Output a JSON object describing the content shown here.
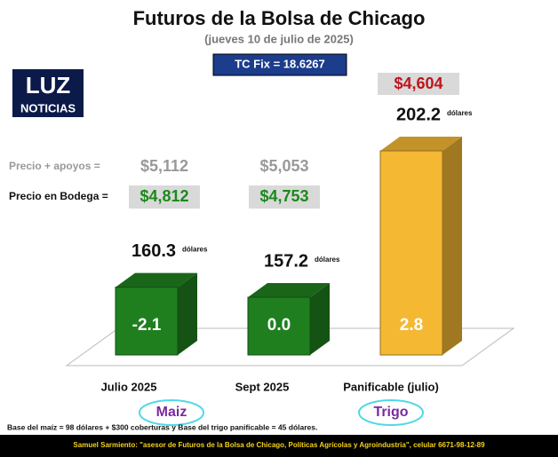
{
  "chart_data": {
    "type": "bar3d",
    "title": "Futuros de la Bolsa de Chicago",
    "subtitle": "(jueves 10 de julio de 2025)",
    "exchange_rate": "TC Fix = 18.6267",
    "logo": {
      "top": "LUZ",
      "bottom": "NOTICIAS"
    },
    "categories": [
      "Julio 2025",
      "Sept 2025",
      "Panificable (julio)"
    ],
    "values": [
      160.3,
      157.2,
      202.2
    ],
    "unit": "dólares",
    "changes": [
      -2.1,
      0,
      2.8
    ],
    "change_labels": [
      "-2.1",
      "0.0",
      "2.8"
    ],
    "colors": [
      "#1f7f1f",
      "#1f7f1f",
      "#f4b833"
    ],
    "support_price_label": "Precio + apoyos  =",
    "support_prices": [
      "$5,112",
      "$5,053"
    ],
    "warehouse_price_label": "Precio en Bodega =",
    "warehouse_prices": [
      "$4,812",
      "$4,753"
    ],
    "wheat_price": "$4,604",
    "groups": [
      "Maiz",
      "Trigo"
    ],
    "note": "Base del maíz = 98 dólares + $300 coberturas y Base del trigo panificable = 45 dólares.",
    "footer": "Samuel Sarmiento: \"asesor de Futuros de la Bolsa de Chicago, Políticas Agrícolas y Agroindustria\", celular 6671-98-12-89"
  }
}
